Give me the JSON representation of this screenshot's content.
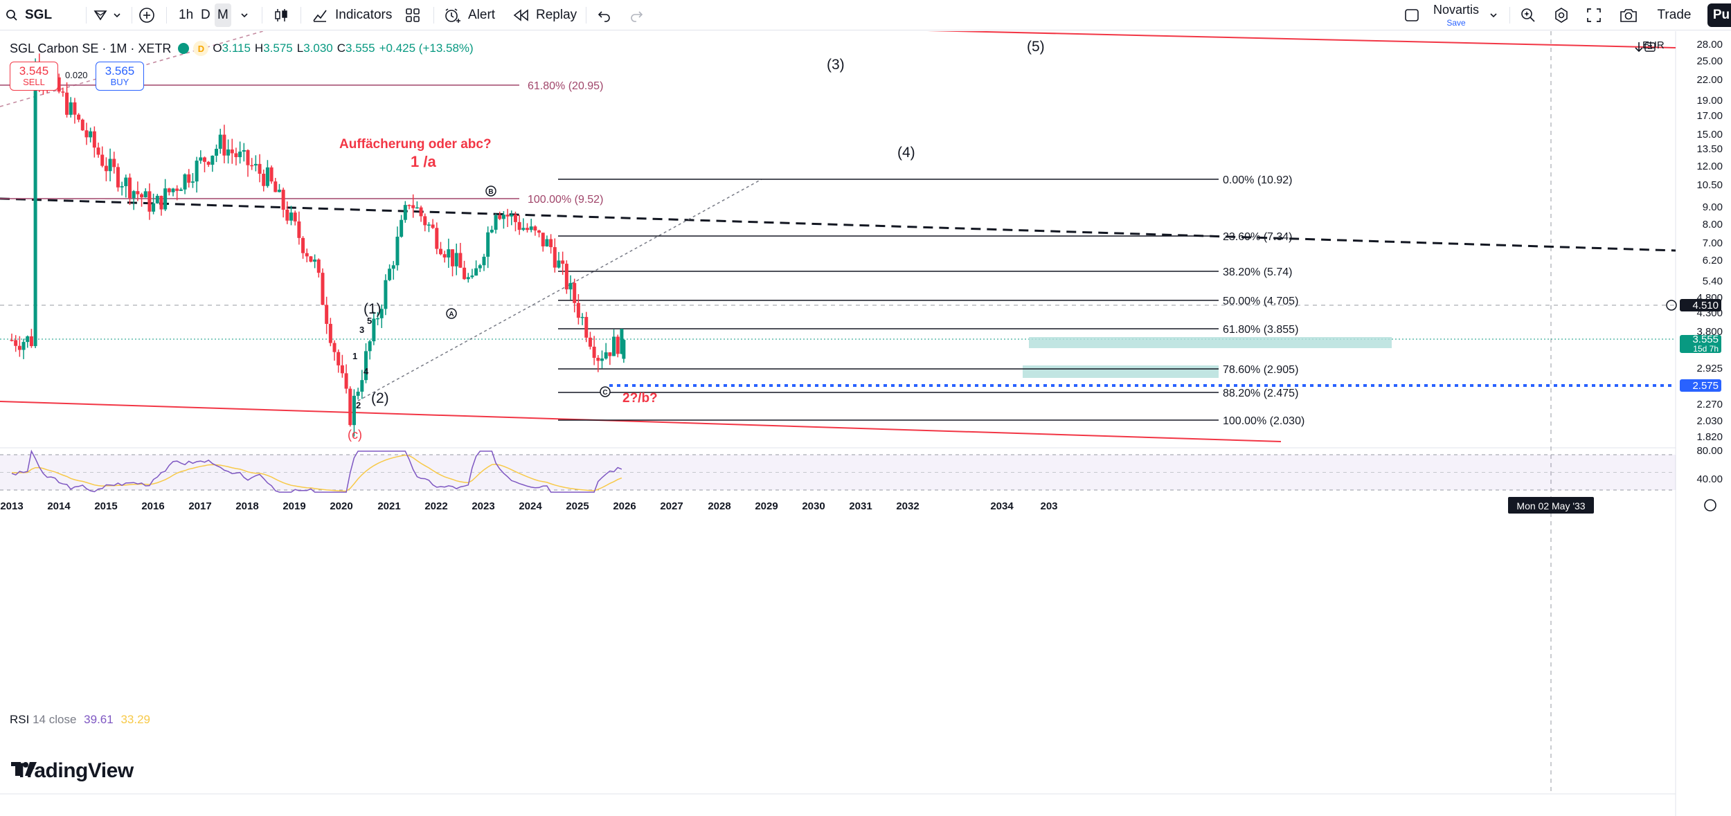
{
  "toolbar": {
    "symbol": "SGL",
    "timeframes": [
      "1h",
      "D",
      "M"
    ],
    "active_timeframe": "M",
    "indicators_label": "Indicators",
    "alert_label": "Alert",
    "replay_label": "Replay",
    "layout_name": "Novartis",
    "save_label": "Save",
    "trade_label": "Trade",
    "publish_label": "Pu"
  },
  "legend": {
    "title": "SGL Carbon SE · 1M · XETR",
    "exchange_badge": "D",
    "open_label": "O",
    "open": "3.115",
    "high_label": "H",
    "high": "3.575",
    "low_label": "L",
    "low": "3.030",
    "close_label": "C",
    "close": "3.555",
    "change": "+0.425 (+13.58%)"
  },
  "order": {
    "sell_price": "3.545",
    "sell_label": "SELL",
    "buy_price": "3.565",
    "buy_label": "BUY",
    "spread": "0.020"
  },
  "price_scale": {
    "currency": "EUR",
    "labels": [
      "28.00",
      "25.00",
      "22.00",
      "19.00",
      "17.00",
      "15.00",
      "13.50",
      "12.00",
      "10.50",
      "9.00",
      "8.00",
      "7.00",
      "6.20",
      "5.40",
      "4.800",
      "4.300",
      "3.800",
      "2.925",
      "2.270",
      "2.030",
      "1.820"
    ],
    "markers": [
      {
        "label": "4.510",
        "kind": "crosshair"
      },
      {
        "label": "3.555",
        "sub": "15d 7h",
        "kind": "last"
      },
      {
        "label": "2.575",
        "kind": "line"
      }
    ],
    "rsi_labels": [
      "80.00",
      "40.00"
    ]
  },
  "time_axis": {
    "labels": [
      "2013",
      "2014",
      "2015",
      "2016",
      "2017",
      "2018",
      "2019",
      "2020",
      "2021",
      "2022",
      "2023",
      "2024",
      "2025",
      "2026",
      "2027",
      "2028",
      "2029",
      "2030",
      "2031",
      "2032",
      "2034",
      "203"
    ],
    "crosshair_date": "Mon 02 May '33"
  },
  "fib_levels": [
    {
      "label": "0.00% (10.92)"
    },
    {
      "label": "23.60% (7.34)"
    },
    {
      "label": "38.20% (5.74)"
    },
    {
      "label": "50.00% (4.705)"
    },
    {
      "label": "61.80% (3.855)"
    },
    {
      "label": "78.60% (2.905)"
    },
    {
      "label": "88.20% (2.475)"
    },
    {
      "label": "100.00% (2.030)"
    }
  ],
  "old_fib_levels": [
    {
      "label": "61.80% (20.95)"
    },
    {
      "label": "100.00% (9.52)"
    }
  ],
  "annotations": {
    "title": "Auffächerung oder abc?",
    "wave_1a": "1 /a",
    "wave_2b": "2?/b?",
    "wave_c_bottom": "(c)",
    "wave_1": "(1)",
    "wave_2": "(2)",
    "wave_3": "(3)",
    "wave_4": "(4)",
    "wave_5": "(5)",
    "sub_1": "1",
    "sub_2": "2",
    "sub_3": "3",
    "sub_4": "4",
    "sub_5": "5",
    "circle_a": "A",
    "circle_b": "B",
    "circle_c": "C"
  },
  "rsi": {
    "label": "RSI",
    "length": "14",
    "source": "close",
    "value": "39.61",
    "ma_value": "33.29"
  },
  "branding": {
    "logo_text": "TradingView"
  },
  "colors": {
    "up": "#089981",
    "down": "#f23645",
    "fib": "#131722",
    "old_fib": "#a0456a",
    "channel": "#f23645",
    "level_line": "#2962ff",
    "rsi": "#7e57c2",
    "rsi_ma": "#f7c948",
    "zone": "#b2dfdb",
    "annotation_red": "#f23645"
  },
  "chart_data": {
    "type": "candlestick",
    "interval": "1M",
    "scale": "log",
    "ylim": [
      1.75,
      29
    ],
    "xlim": [
      "2013",
      "2036"
    ],
    "samples": [
      {
        "date": "2013-06",
        "close": 25.0
      },
      {
        "date": "2014-01",
        "close": 20.0
      },
      {
        "date": "2015-01",
        "close": 12.0
      },
      {
        "date": "2016-01",
        "close": 9.0
      },
      {
        "date": "2017-06",
        "close": 14.0
      },
      {
        "date": "2018-06",
        "close": 11.0
      },
      {
        "date": "2019-06",
        "close": 6.0
      },
      {
        "date": "2020-03",
        "close": 2.1
      },
      {
        "date": "2021-06",
        "close": 9.5
      },
      {
        "date": "2022-10",
        "close": 5.2
      },
      {
        "date": "2023-04",
        "close": 9.0
      },
      {
        "date": "2024-06",
        "close": 6.8
      },
      {
        "date": "2025-06",
        "close": 3.2
      },
      {
        "date": "2025-12",
        "close": 3.555
      }
    ],
    "last": {
      "open": 3.115,
      "high": 3.575,
      "low": 3.03,
      "close": 3.555
    }
  }
}
